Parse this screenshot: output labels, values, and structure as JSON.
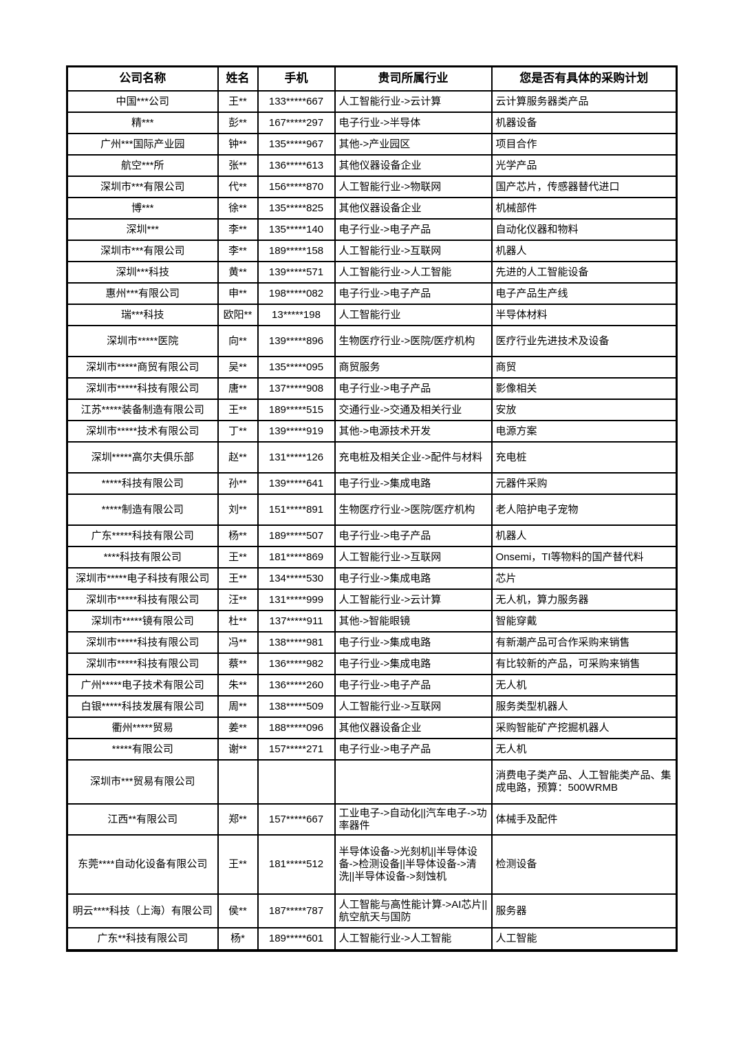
{
  "colors": {
    "background": "#ffffff",
    "border": "#000000",
    "text": "#000000"
  },
  "table": {
    "headers": [
      "公司名称",
      "姓名",
      "手机",
      "贵司所属行业",
      "您是否有具体的采购计划"
    ],
    "rows": [
      [
        "中国***公司",
        "王**",
        "133*****667",
        "人工智能行业->云计算",
        "云计算服务器类产品"
      ],
      [
        "精***",
        "彭**",
        "167*****297",
        "电子行业->半导体",
        "机器设备"
      ],
      [
        "广州***国际产业园",
        "钟**",
        "135*****967",
        "其他->产业园区",
        "项目合作"
      ],
      [
        "航空***所",
        "张**",
        "136*****613",
        "其他仪器设备企业",
        "光学产品"
      ],
      [
        "深圳市***有限公司",
        "代**",
        "156*****870",
        "人工智能行业->物联网",
        "国产芯片，传感器替代进口"
      ],
      [
        "博***",
        "徐**",
        "135*****825",
        "其他仪器设备企业",
        "机械部件"
      ],
      [
        "深圳***",
        "李**",
        "135*****140",
        "电子行业->电子产品",
        "自动化仪器和物料"
      ],
      [
        "深圳市***有限公司",
        "李**",
        "189*****158",
        "人工智能行业->互联网",
        "机器人"
      ],
      [
        "深圳***科技",
        "黄**",
        "139*****571",
        "人工智能行业->人工智能",
        "先进的人工智能设备"
      ],
      [
        "惠州***有限公司",
        "申**",
        "198*****082",
        "电子行业->电子产品",
        "电子产品生产线"
      ],
      [
        "瑞***科技",
        "欧阳**",
        "13*****198",
        "人工智能行业",
        "半导体材料"
      ],
      [
        "深圳市*****医院",
        "向**",
        "139*****896",
        "生物医疗行业->医院/医疗机构",
        "医疗行业先进技术及设备"
      ],
      [
        "深圳市*****商贸有限公司",
        "吴**",
        "135*****095",
        "商贸服务",
        "商贸"
      ],
      [
        "深圳市*****科技有限公司",
        "唐**",
        "137*****908",
        "电子行业->电子产品",
        "影像相关"
      ],
      [
        "江苏*****装备制造有限公司",
        "王**",
        "189*****515",
        "交通行业->交通及相关行业",
        "安放"
      ],
      [
        "深圳市*****技术有限公司",
        "丁**",
        "139*****919",
        "其他->电源技术开发",
        "电源方案"
      ],
      [
        "深圳*****高尔夫俱乐部",
        "赵**",
        "131*****126",
        "充电桩及相关企业->配件与材料",
        "充电桩"
      ],
      [
        "*****科技有限公司",
        "孙**",
        "139*****641",
        "电子行业->集成电路",
        "元器件采购"
      ],
      [
        "*****制造有限公司",
        "刘**",
        "151*****891",
        "生物医疗行业->医院/医疗机构",
        "老人陪护电子宠物"
      ],
      [
        "广东*****科技有限公司",
        "杨**",
        "189*****507",
        "电子行业->电子产品",
        "机器人"
      ],
      [
        "****科技有限公司",
        "王**",
        "181*****869",
        "人工智能行业->互联网",
        "Onsemi，TI等物料的国产替代料"
      ],
      [
        "深圳市*****电子科技有限公司",
        "王**",
        "134*****530",
        "电子行业->集成电路",
        "芯片"
      ],
      [
        "深圳市*****科技有限公司",
        "汪**",
        "131*****999",
        "人工智能行业->云计算",
        "无人机，算力服务器"
      ],
      [
        "深圳市*****镜有限公司",
        "杜**",
        "137*****911",
        "其他->智能眼镜",
        "智能穿戴"
      ],
      [
        "深圳市*****科技有限公司",
        "冯**",
        "138*****981",
        "电子行业->集成电路",
        "有新潮产品可合作采购来销售"
      ],
      [
        "深圳市*****科技有限公司",
        "蔡**",
        "136*****982",
        "电子行业->集成电路",
        "有比较新的产品，可采购来销售"
      ],
      [
        "广州*****电子技术有限公司",
        "朱**",
        "136*****260",
        "电子行业->电子产品",
        "无人机"
      ],
      [
        "白银*****科技发展有限公司",
        "周**",
        "138*****509",
        "人工智能行业->互联网",
        "服务类型机器人"
      ],
      [
        "衢州*****贸易",
        "姜**",
        "188*****096",
        "其他仪器设备企业",
        "采购智能矿产挖掘机器人"
      ],
      [
        "*****有限公司",
        "谢**",
        "157*****271",
        "电子行业->电子产品",
        "无人机"
      ],
      [
        "深圳市***贸易有限公司",
        "",
        "",
        "",
        "消费电子类产品、人工智能类产品、集成电路，预算：500WRMB"
      ],
      [
        "江西**有限公司",
        "郑**",
        "157*****667",
        "工业电子->自动化||汽车电子->功率器件",
        "体械手及配件"
      ],
      [
        "东莞****自动化设备有限公司",
        "王**",
        "181*****512",
        "半导体设备->光刻机||半导体设备->检测设备||半导体设备->清洗||半导体设备->刻蚀机",
        "检测设备"
      ],
      [
        "明云****科技（上海）有限公司",
        "侯**",
        "187*****787",
        "人工智能与高性能计算->AI芯片||航空航天与国防",
        "服务器"
      ],
      [
        "广东**科技有限公司",
        "杨*",
        "189*****601",
        "人工智能行业->人工智能",
        "人工智能"
      ]
    ]
  }
}
